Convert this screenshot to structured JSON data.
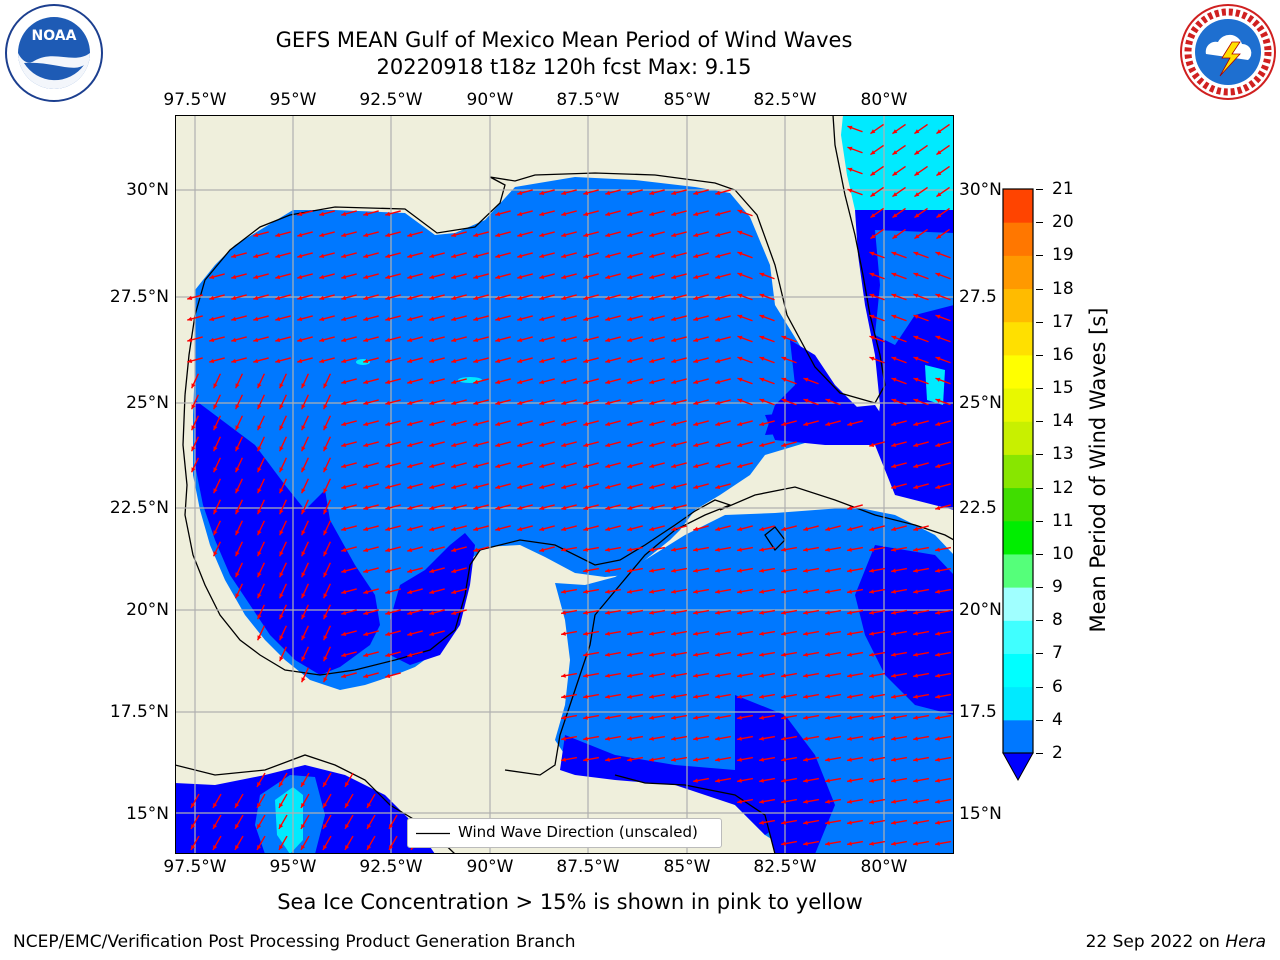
{
  "header": {
    "title_line1": "GEFS MEAN Gulf of Mexico Mean Period of Wind Waves",
    "title_line2": "20220918 t18z 120h fcst   Max: 9.15"
  },
  "logos": {
    "left_text": "NOAA",
    "left_ring_text": "NATIONAL OCEANIC AND ATMOSPHERIC ADMINISTRATION · U.S. DEPARTMENT OF COMMERCE",
    "right_ring_text": "NATIONAL WEATHER SERVICE"
  },
  "map": {
    "lon_labels": [
      "97.5°W",
      "95°W",
      "92.5°W",
      "90°W",
      "87.5°W",
      "85°W",
      "82.5°W",
      "80°W"
    ],
    "lat_labels_left": [
      "30°N",
      "27.5°N",
      "25°N",
      "22.5°N",
      "20°N",
      "17.5°N",
      "15°N"
    ],
    "lat_labels_right": [
      "30°N",
      "27.5",
      "25°N",
      "22.5",
      "20°N",
      "17.5",
      "15°N"
    ],
    "legend_label": "Wind Wave Direction (unscaled)",
    "colors": {
      "land": "#efefdc",
      "wave_2": "#0078ff",
      "wave_low": "#0000ff",
      "wave_4": "#00eaff",
      "arrow": "#ff0000",
      "grid": "#b0b0b0"
    }
  },
  "colorbar": {
    "label": "Mean Period of Wind Waves [s]",
    "ticks": [
      "2",
      "4",
      "6",
      "7",
      "8",
      "9",
      "10",
      "11",
      "12",
      "13",
      "14",
      "15",
      "16",
      "17",
      "18",
      "19",
      "20",
      "21"
    ],
    "colors": [
      "#0078ff",
      "#00eaff",
      "#00ffff",
      "#40ffff",
      "#a0ffff",
      "#55ff7a",
      "#00ee00",
      "#40dd00",
      "#88e600",
      "#c8f000",
      "#e8f800",
      "#ffff00",
      "#ffe000",
      "#ffbb00",
      "#ff9900",
      "#ff7700",
      "#ff4400",
      "#ff0000"
    ],
    "extend_color": "#0000ff"
  },
  "note": "Sea Ice Concentration > 15% is shown in pink to yellow",
  "footer": {
    "left": "NCEP/EMC/Verification Post Processing Product Generation Branch",
    "right_date": "22 Sep 2022 on ",
    "right_host": "Hera"
  }
}
